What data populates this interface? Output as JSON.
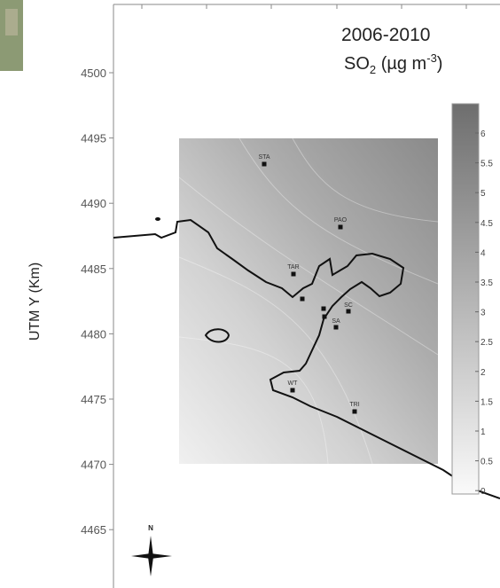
{
  "map": {
    "period": "2006-2010",
    "pollutant": {
      "main": "SO",
      "sub": "2",
      "unit": " (µg m",
      "exp": "-3",
      "close": ")"
    },
    "y_axis_label": "UTM Y (Km)",
    "y_ticks": [
      "4500",
      "4495",
      "4490",
      "4485",
      "4480",
      "4475",
      "4470",
      "4465"
    ],
    "colorbar_labels": [
      "6",
      "5.5",
      "5",
      "4.5",
      "4",
      "3.5",
      "3",
      "2.5",
      "2",
      "1.5",
      "1",
      "0.5",
      "0"
    ],
    "north": "N",
    "stations": [
      "STA",
      "PAO",
      "TAR",
      "WT",
      "TRI",
      "SA",
      "SC"
    ]
  }
}
